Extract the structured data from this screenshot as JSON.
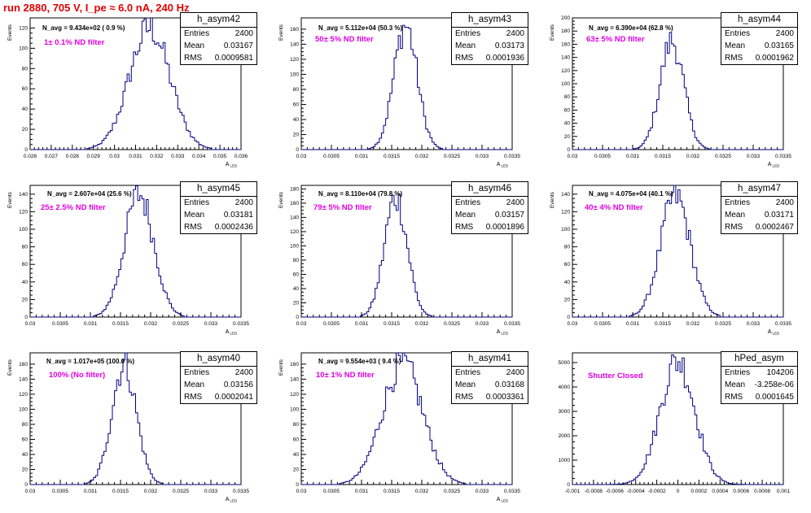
{
  "title": "run 2880,   705 V, I_pe ≈ 6.0 nA, 240 Hz",
  "colors": {
    "title": "#e00000",
    "histogram_line": "#000080",
    "filter_label": "#e000e0"
  },
  "chart_data": [
    {
      "type": "bar",
      "name": "h_asym42",
      "n_avg": "N_avg = 9.434e+02 ( 0.9 %)",
      "filter": "1± 0.1% ND filter",
      "stats": {
        "entries": "2400",
        "mean": "0.03167",
        "rms": "0.0009581"
      },
      "xlim": [
        0.026,
        0.036
      ],
      "ylim": [
        0,
        130
      ],
      "xticks": [
        "0.026",
        "0.027",
        "0.028",
        "0.029",
        "0.03",
        "0.031",
        "0.032",
        "0.033",
        "0.034",
        "0.035",
        "0.036"
      ],
      "yticks": [
        "0",
        "20",
        "40",
        "60",
        "80",
        "100",
        "120"
      ],
      "xlabel": "A_LED",
      "ylabel": "Events",
      "mean": 0.03167,
      "sigma": 0.0009581,
      "peak": 120
    },
    {
      "type": "bar",
      "name": "h_asym43",
      "n_avg": "N_avg = 5.112e+04 (50.3 %)",
      "filter": "50± 5% ND filter",
      "stats": {
        "entries": "2400",
        "mean": "0.03173",
        "rms": "0.0001936"
      },
      "xlim": [
        0.03,
        0.0335
      ],
      "ylim": [
        0,
        175
      ],
      "xticks": [
        "0.03",
        "0.0305",
        "0.031",
        "0.0315",
        "0.032",
        "0.0325",
        "0.033",
        "0.0335"
      ],
      "yticks": [
        "0",
        "20",
        "40",
        "60",
        "80",
        "100",
        "120",
        "140",
        "160"
      ],
      "xlabel": "A_LED",
      "ylabel": "Events",
      "mean": 0.03173,
      "sigma": 0.0001936,
      "peak": 165
    },
    {
      "type": "bar",
      "name": "h_asym44",
      "n_avg": "N_avg = 6.390e+04 (62.8 %)",
      "filter": "63± 5% ND filter",
      "stats": {
        "entries": "2400",
        "mean": "0.03165",
        "rms": "0.0001962"
      },
      "xlim": [
        0.03,
        0.0335
      ],
      "ylim": [
        0,
        200
      ],
      "xticks": [
        "0.03",
        "0.0305",
        "0.031",
        "0.0315",
        "0.032",
        "0.0325",
        "0.033",
        "0.0335"
      ],
      "yticks": [
        "0",
        "20",
        "40",
        "60",
        "80",
        "100",
        "120",
        "140",
        "160",
        "180",
        "200"
      ],
      "xlabel": "A_LED",
      "ylabel": "Events",
      "mean": 0.03165,
      "sigma": 0.0001962,
      "peak": 165
    },
    {
      "type": "bar",
      "name": "h_asym45",
      "n_avg": "N_avg = 2.607e+04 (25.6 %)",
      "filter": "25± 2.5% ND filter",
      "stats": {
        "entries": "2400",
        "mean": "0.03181",
        "rms": "0.0002436"
      },
      "xlim": [
        0.03,
        0.0335
      ],
      "ylim": [
        0,
        150
      ],
      "xticks": [
        "0.03",
        "0.0305",
        "0.031",
        "0.0315",
        "0.032",
        "0.0325",
        "0.033",
        "0.0335"
      ],
      "yticks": [
        "0",
        "20",
        "40",
        "60",
        "80",
        "100",
        "120",
        "140"
      ],
      "xlabel": "A_LED",
      "ylabel": "Events",
      "mean": 0.03181,
      "sigma": 0.0002436,
      "peak": 140
    },
    {
      "type": "bar",
      "name": "h_asym46",
      "n_avg": "N_avg = 8.110e+04 (79.8 %)",
      "filter": "79± 5% ND filter",
      "stats": {
        "entries": "2400",
        "mean": "0.03157",
        "rms": "0.0001896"
      },
      "xlim": [
        0.03,
        0.0335
      ],
      "ylim": [
        0,
        185
      ],
      "xticks": [
        "0.03",
        "0.0305",
        "0.031",
        "0.0315",
        "0.032",
        "0.0325",
        "0.033",
        "0.0335"
      ],
      "yticks": [
        "0",
        "20",
        "40",
        "60",
        "80",
        "100",
        "120",
        "140",
        "160",
        "180"
      ],
      "xlabel": "A_LED",
      "ylabel": "Events",
      "mean": 0.03157,
      "sigma": 0.0001896,
      "peak": 168
    },
    {
      "type": "bar",
      "name": "h_asym47",
      "n_avg": "N_avg = 4.075e+04 (40.1 %)",
      "filter": "40± 4% ND filter",
      "stats": {
        "entries": "2400",
        "mean": "0.03171",
        "rms": "0.0002467"
      },
      "xlim": [
        0.03,
        0.0335
      ],
      "ylim": [
        0,
        150
      ],
      "xticks": [
        "0.03",
        "0.0305",
        "0.031",
        "0.0315",
        "0.032",
        "0.0325",
        "0.033",
        "0.0335"
      ],
      "yticks": [
        "0",
        "20",
        "40",
        "60",
        "80",
        "100",
        "120",
        "140"
      ],
      "xlabel": "A_LED",
      "ylabel": "Events",
      "mean": 0.03171,
      "sigma": 0.0002467,
      "peak": 138
    },
    {
      "type": "bar",
      "name": "h_asym40",
      "n_avg": "N_avg = 1.017e+05 (100.0 %)",
      "filter": "100% (No filter)",
      "stats": {
        "entries": "2400",
        "mean": "0.03156",
        "rms": "0.0002041"
      },
      "xlim": [
        0.03,
        0.0335
      ],
      "ylim": [
        0,
        175
      ],
      "xticks": [
        "0.03",
        "0.0305",
        "0.031",
        "0.0315",
        "0.032",
        "0.0325",
        "0.033",
        "0.0335"
      ],
      "yticks": [
        "0",
        "20",
        "40",
        "60",
        "80",
        "100",
        "120",
        "140",
        "160"
      ],
      "xlabel": "A_LED",
      "ylabel": "Events",
      "mean": 0.03156,
      "sigma": 0.0002041,
      "peak": 160
    },
    {
      "type": "bar",
      "name": "h_asym41",
      "n_avg": "N_avg = 9.554e+03 ( 9.4 %)",
      "filter": "10± 1% ND filter",
      "stats": {
        "entries": "2400",
        "mean": "0.03168",
        "rms": "0.0003361"
      },
      "xlim": [
        0.03,
        0.0335
      ],
      "ylim": [
        0,
        175
      ],
      "xticks": [
        "0.03",
        "0.0305",
        "0.031",
        "0.0315",
        "0.032",
        "0.0325",
        "0.033",
        "0.0335"
      ],
      "yticks": [
        "0",
        "20",
        "40",
        "60",
        "80",
        "100",
        "120",
        "140",
        "160"
      ],
      "xlabel": "A_LED",
      "ylabel": "Events",
      "mean": 0.03168,
      "sigma": 0.0003361,
      "peak": 160
    },
    {
      "type": "bar",
      "name": "hPed_asym",
      "n_avg": "",
      "filter": "Shutter Closed",
      "stats": {
        "entries": "104206",
        "mean": "-3.258e-06",
        "rms": "0.0001645"
      },
      "xlim": [
        -0.001,
        0.001
      ],
      "ylim": [
        0,
        5400
      ],
      "xticks": [
        "-0.001",
        "-0.0008",
        "-0.0006",
        "-0.0004",
        "-0.0002",
        "0",
        "0.0002",
        "0.0004",
        "0.0006",
        "0.0008",
        "0.001"
      ],
      "yticks": [
        "0",
        "1000",
        "2000",
        "3000",
        "4000",
        "5000"
      ],
      "xlabel": "",
      "ylabel": "",
      "mean": -3.258e-06,
      "sigma": 0.0001645,
      "peak": 5080
    }
  ]
}
